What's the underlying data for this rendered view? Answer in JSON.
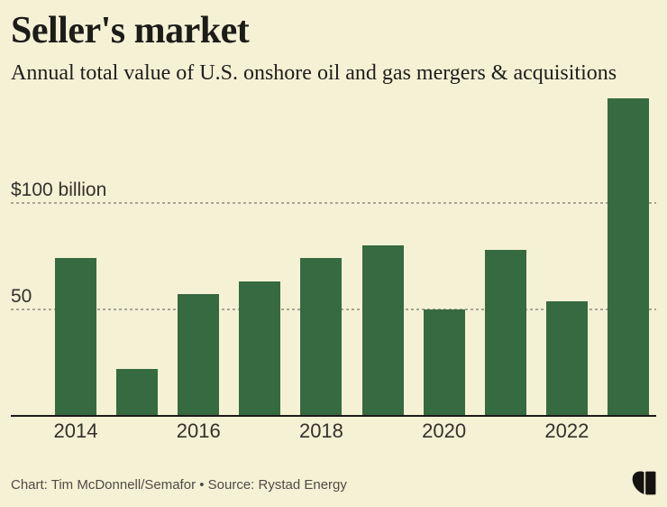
{
  "chart_data": {
    "type": "bar",
    "title": "Seller's market",
    "subtitle": "Annual total value of U.S. onshore oil and gas mergers & acquisitions",
    "categories": [
      "2014",
      "2015",
      "2016",
      "2017",
      "2018",
      "2019",
      "2020",
      "2021",
      "2022",
      "2023"
    ],
    "values": [
      74,
      22,
      57,
      63,
      74,
      80,
      50,
      78,
      54,
      149
    ],
    "unit": "billion USD",
    "ylim": [
      0,
      155
    ],
    "y_axis": [
      {
        "value": 100,
        "label": "$100 billion"
      },
      {
        "value": 50,
        "label": "50"
      }
    ],
    "x_tick_labels": [
      "2014",
      "2016",
      "2018",
      "2020",
      "2022"
    ],
    "grid": "horizontal dashed",
    "legend": "none",
    "bar_color": "#366a40",
    "background_color": "#f5f1d5",
    "gridline_color": "#a9a494",
    "axis_color": "#1b1b18"
  },
  "footer": {
    "caption": "Chart: Tim McDonnell/Semafor • Source: Rystad Energy",
    "logo": "semafor-s-logo"
  }
}
